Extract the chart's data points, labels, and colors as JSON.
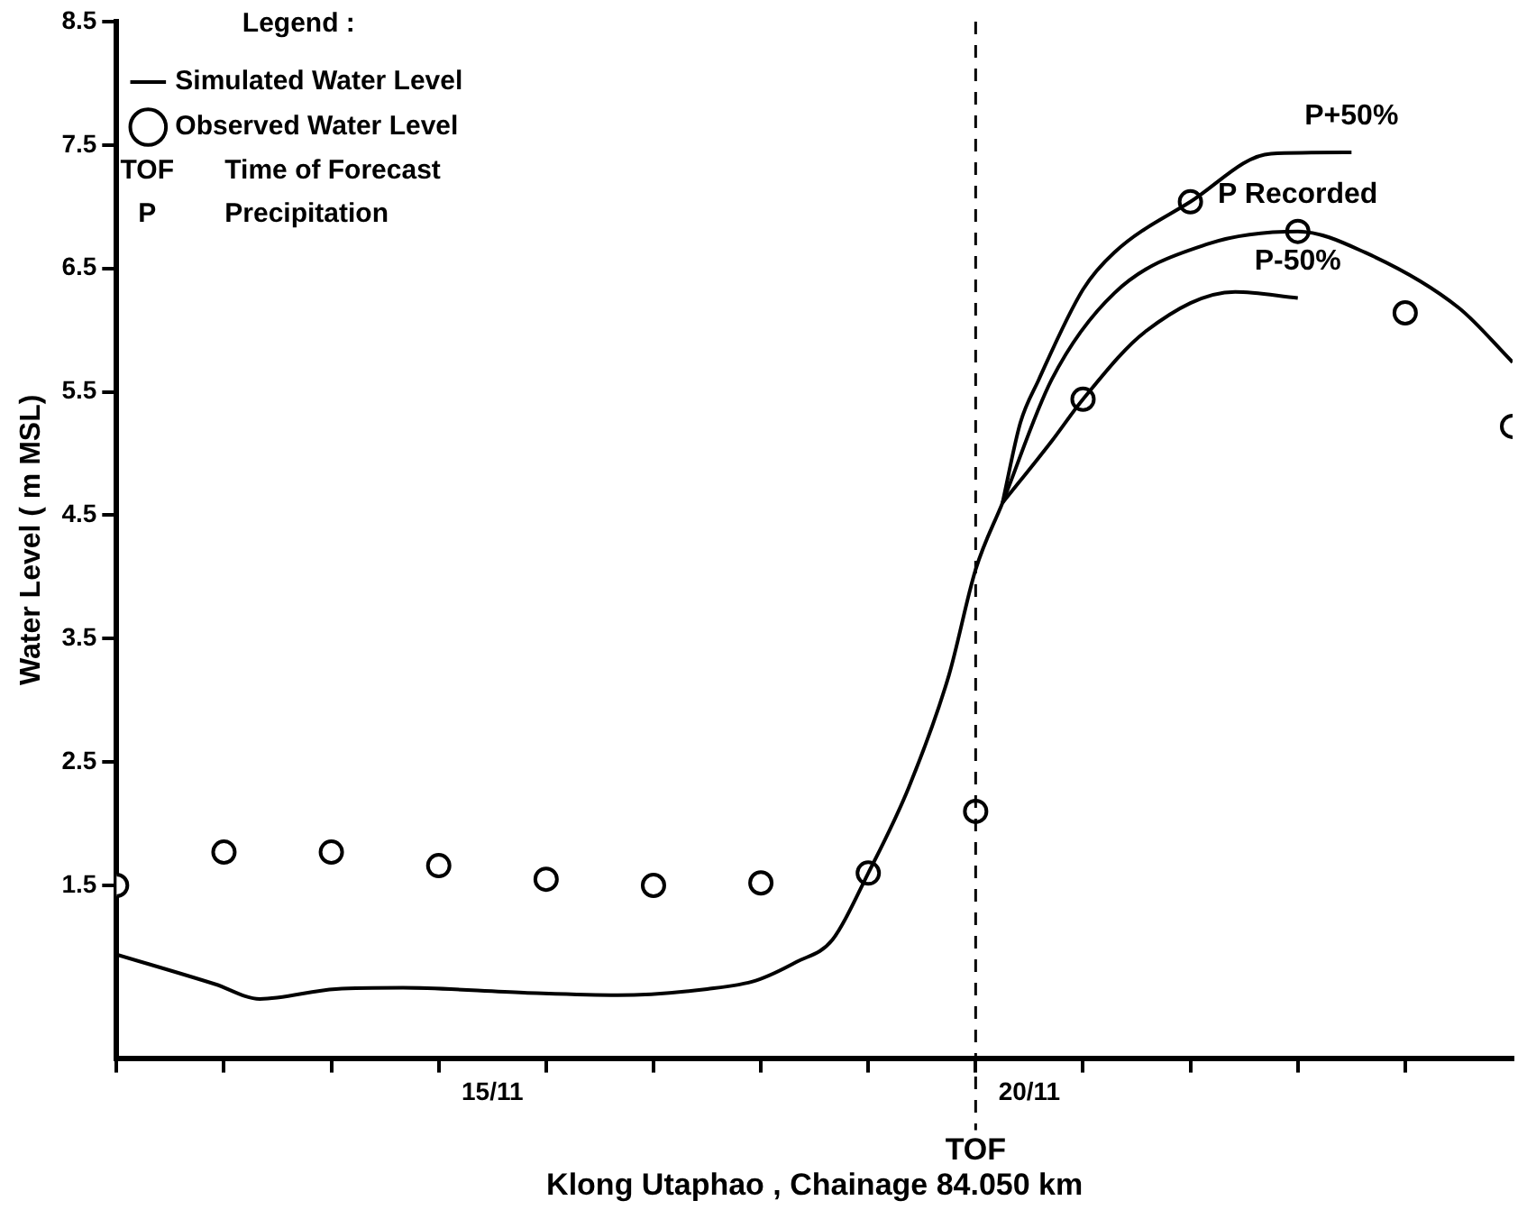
{
  "chart_data": {
    "type": "line",
    "xlabel": "Klong Utaphao , Chainage 84.050 km",
    "ylabel": "Water Level ( m MSL)",
    "legend": "top left",
    "legend_title": "Legend :",
    "xlim": [
      "--11-12",
      "--11-25"
    ],
    "xticks": [
      {
        "value": "--11-12",
        "label": null
      },
      {
        "value": "--11-13",
        "label": null
      },
      {
        "value": "--11-14",
        "label": null
      },
      {
        "value": "--11-15",
        "label": null
      },
      {
        "value": "--11-15T12:00",
        "label": "15/11"
      },
      {
        "value": "--11-16",
        "label": null
      },
      {
        "value": "--11-17",
        "label": null
      },
      {
        "value": "--11-18",
        "label": null
      },
      {
        "value": "--11-19",
        "label": null
      },
      {
        "value": "--11-20",
        "label": null
      },
      {
        "value": "--11-20T12:00",
        "label": "20/11"
      },
      {
        "value": "--11-21",
        "label": null
      },
      {
        "value": "--11-22",
        "label": null
      },
      {
        "value": "--11-23",
        "label": null
      },
      {
        "value": "--11-24",
        "label": null
      }
    ],
    "ylim": [
      0.1,
      8.5
    ],
    "yticks": [
      1.5,
      2.5,
      3.5,
      4.5,
      5.5,
      6.5,
      7.5,
      8.5
    ],
    "grid": false,
    "series": [
      {
        "name": "Simulated Water Level",
        "type": "line",
        "color": "#000000",
        "x": [
          "--11-12T00:00",
          "--11-12T22:00",
          "--11-13T08:00",
          "--11-14T01:00",
          "--11-14T16:00",
          "--11-15T19:00",
          "--11-16T16:00",
          "--11-17T12:00",
          "--11-17T23:00",
          "--11-18T08:00",
          "--11-18T16:00",
          "--11-19T00:00",
          "--11-19T09:00",
          "--11-19T18:00",
          "--11-20T00:00",
          "--11-20T06:00",
          "--11-20T17:00",
          "--11-21T07:00",
          "--11-22T04:00",
          "--11-23T00:00",
          "--11-23T15:00",
          "--11-24T12:00",
          "--11-25T00:00"
        ],
        "values": [
          0.94,
          0.7,
          0.58,
          0.66,
          0.67,
          0.63,
          0.61,
          0.66,
          0.73,
          0.88,
          1.06,
          1.6,
          2.29,
          3.2,
          4.06,
          4.6,
          5.6,
          6.3,
          6.7,
          6.8,
          6.63,
          6.18,
          5.74
        ]
      },
      {
        "type": "line",
        "color": "#000000",
        "x": [
          "--11-20T06:00",
          "--11-20T10:00",
          "--11-20T14:00",
          "--11-21T00:00",
          "--11-21T07:00",
          "--11-22T00:00",
          "--11-22T18:00",
          "--11-23T12:00"
        ],
        "values": [
          4.6,
          5.25,
          5.59,
          6.33,
          6.63,
          7.04,
          7.43,
          7.44
        ]
      },
      {
        "type": "line",
        "color": "#000000",
        "x": [
          "--11-20T06:00",
          "--11-20T17:00",
          "--11-21T00:00",
          "--11-21T14:00",
          "--11-22T10:00",
          "--11-23T00:00"
        ],
        "values": [
          4.6,
          5.1,
          5.44,
          5.99,
          6.31,
          6.26
        ]
      },
      {
        "name": "Observed Water Level",
        "type": "scatter",
        "color": "#000000",
        "marker": "circle",
        "x": [
          "--11-12",
          "--11-13",
          "--11-14",
          "--11-15",
          "--11-16",
          "--11-17",
          "--11-18",
          "--11-19",
          "--11-20",
          "--11-21",
          "--11-22",
          "--11-23",
          "--11-24",
          "--11-25"
        ],
        "values": [
          1.5,
          1.77,
          1.77,
          1.66,
          1.55,
          1.5,
          1.52,
          1.6,
          2.1,
          5.44,
          7.04,
          6.8,
          6.14,
          5.22
        ]
      }
    ],
    "ref_lines": [
      {
        "axis": "x",
        "value": "--11-20",
        "label": "TOF",
        "line_style": "dashed"
      }
    ],
    "annotations": [
      {
        "text": "P+50%",
        "x": "--11-23T12:00",
        "y": 7.44
      },
      {
        "text": "P Recorded",
        "x": "--11-23",
        "y": 6.8
      },
      {
        "text": "P-50%",
        "x": "--11-23T00:00",
        "y": 6.26
      },
      "TOF Time of Forecast",
      "P Precipitation"
    ]
  }
}
